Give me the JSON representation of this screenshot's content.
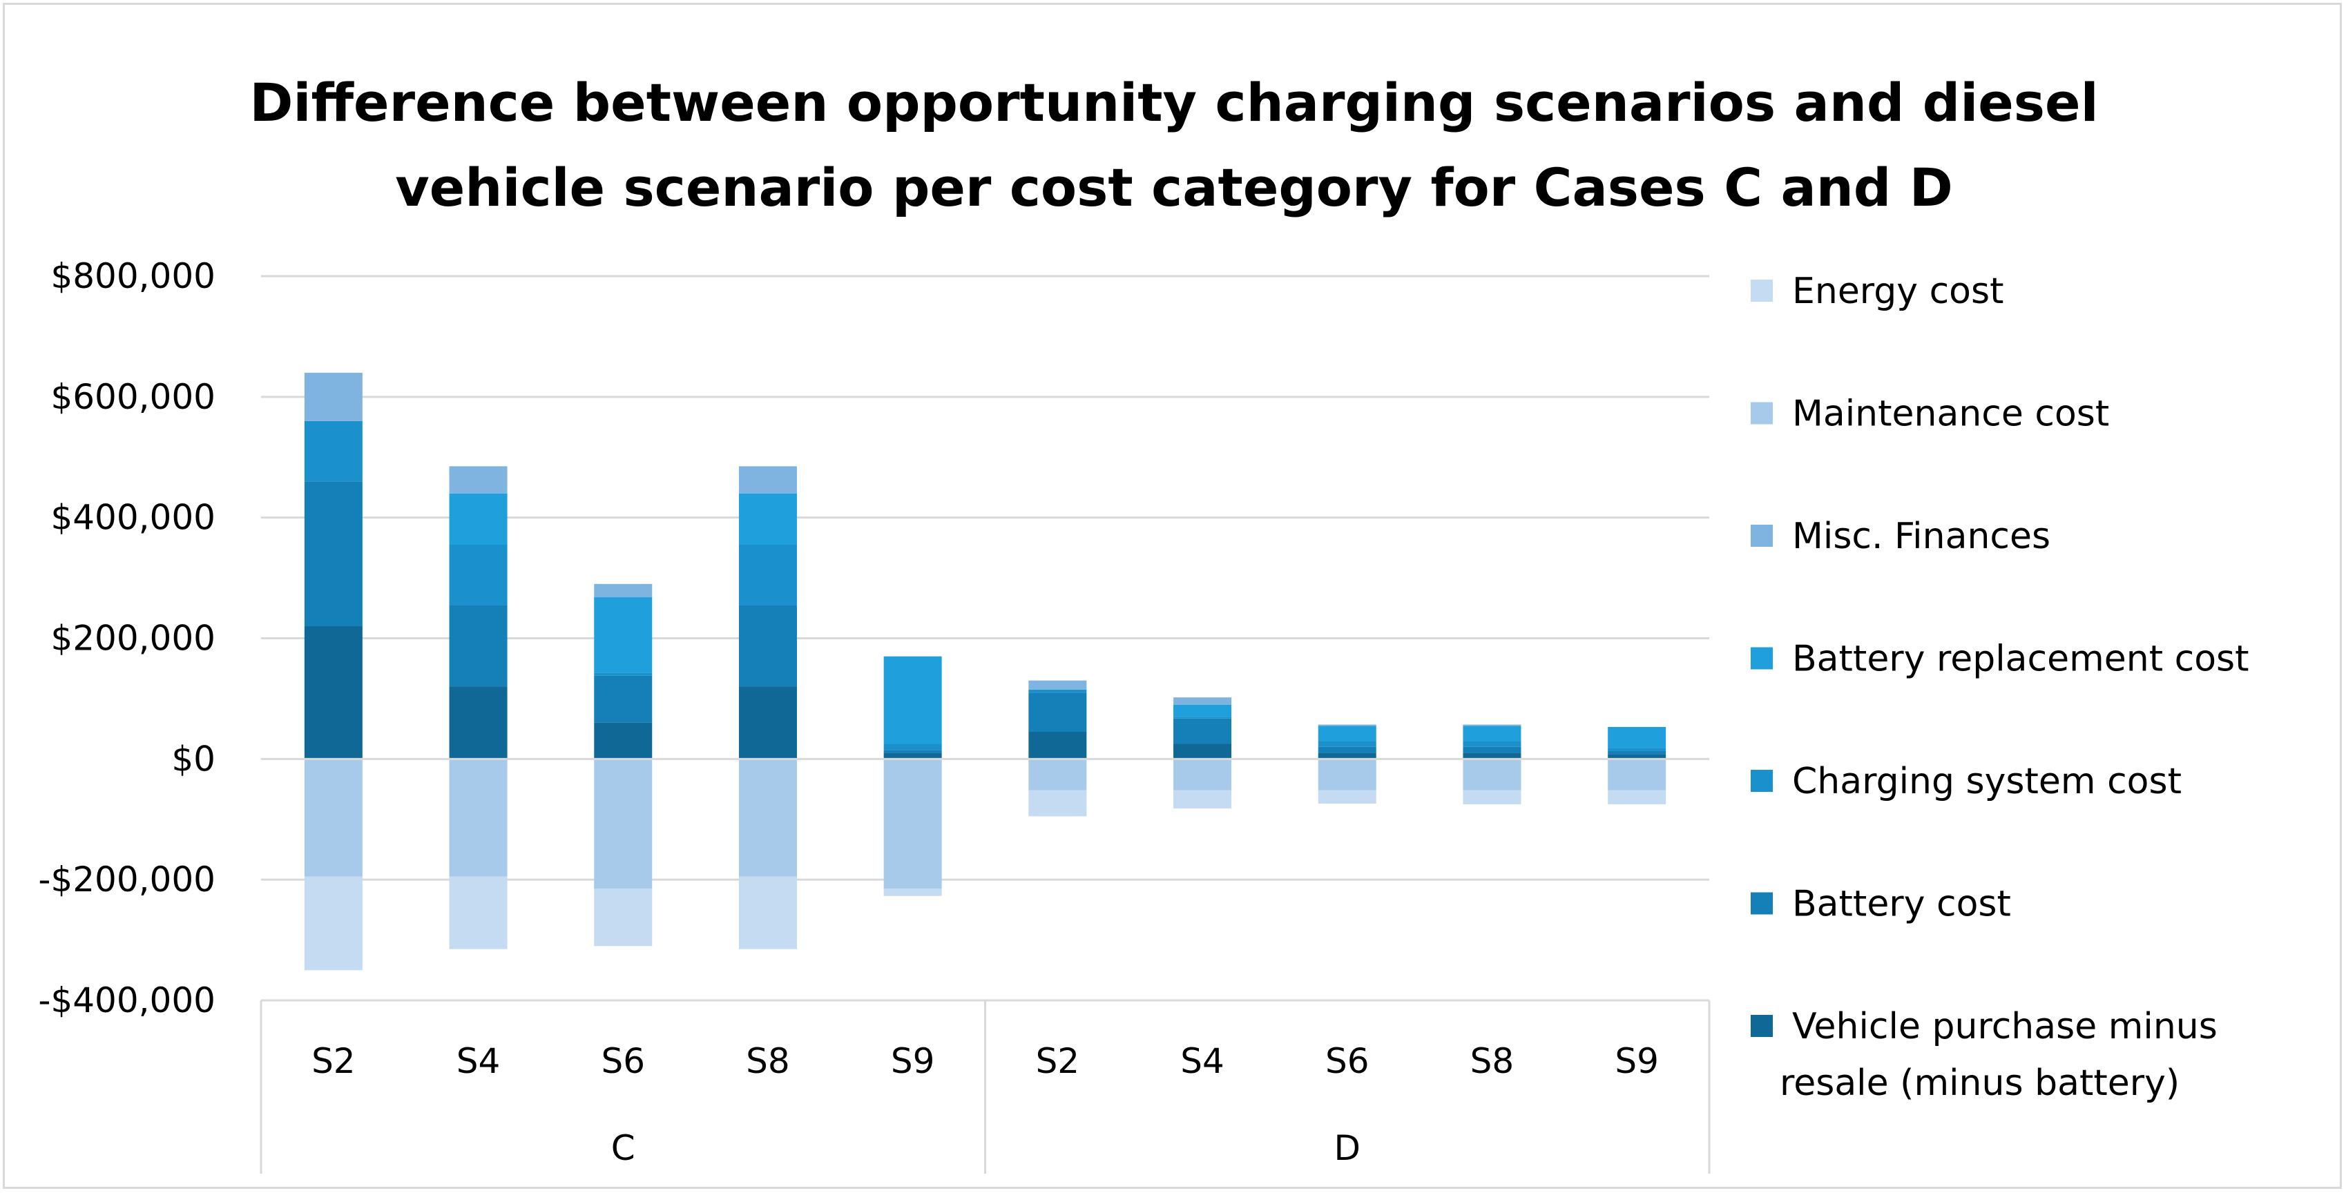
{
  "chart_data": {
    "type": "bar",
    "stacked": true,
    "title_lines": [
      "Difference between opportunity charging scenarios and diesel",
      "vehicle scenario per cost category for Cases C and D"
    ],
    "ylim": [
      -400000,
      800000
    ],
    "yticks": [
      800000,
      600000,
      400000,
      200000,
      0,
      -200000,
      -400000
    ],
    "ytick_labels": [
      "$800,000",
      "$600,000",
      "$400,000",
      "$200,000",
      "$0",
      "-$200,000",
      "-$400,000"
    ],
    "grid": true,
    "legend_position": "right",
    "groups": [
      {
        "name": "C",
        "categories": [
          "S2",
          "S4",
          "S6",
          "S8",
          "S9"
        ]
      },
      {
        "name": "D",
        "categories": [
          "S2",
          "S4",
          "S6",
          "S8",
          "S9"
        ]
      }
    ],
    "categories": [
      "S2",
      "S4",
      "S6",
      "S8",
      "S9",
      "S2",
      "S4",
      "S6",
      "S8",
      "S9"
    ],
    "series": [
      {
        "name": "Vehicle purchase minus resale (minus battery)",
        "color": "#0f6896",
        "values": [
          220000,
          120000,
          60000,
          120000,
          10000,
          45000,
          25000,
          10000,
          10000,
          8000
        ]
      },
      {
        "name": "Battery cost",
        "color": "#1580b7",
        "values": [
          240000,
          135000,
          78000,
          135000,
          5000,
          65000,
          42000,
          10000,
          10000,
          5000
        ]
      },
      {
        "name": "Charging system cost",
        "color": "#1a91cc",
        "values": [
          100000,
          100000,
          5000,
          100000,
          10000,
          5000,
          3000,
          10000,
          10000,
          5000
        ]
      },
      {
        "name": "Battery replacement cost",
        "color": "#1fa0dc",
        "values": [
          0,
          85000,
          125000,
          85000,
          145000,
          0,
          20000,
          25000,
          25000,
          35000
        ]
      },
      {
        "name": "Misc. Finances",
        "color": "#7fb4e1",
        "values": [
          80000,
          45000,
          22000,
          45000,
          0,
          15000,
          12000,
          2000,
          2000,
          0
        ]
      },
      {
        "name": "Maintenance cost",
        "color": "#a7c9ea",
        "values": [
          -195000,
          -195000,
          -215000,
          -195000,
          -215000,
          -52000,
          -52000,
          -52000,
          -52000,
          -52000
        ]
      },
      {
        "name": "Energy cost",
        "color": "#c5dbf1",
        "values": [
          -155000,
          -120000,
          -95000,
          -120000,
          -12000,
          -43000,
          -30000,
          -22000,
          -23000,
          -23000
        ]
      }
    ],
    "legend_order": [
      "Energy cost",
      "Maintenance cost",
      "Misc. Finances",
      "Battery replacement cost",
      "Charging system cost",
      "Battery cost",
      "Vehicle purchase minus resale (minus battery)"
    ],
    "legend_labels": [
      [
        "Energy cost"
      ],
      [
        "Maintenance cost"
      ],
      [
        "Misc. Finances"
      ],
      [
        "Battery replacement cost"
      ],
      [
        "Charging system cost"
      ],
      [
        "Battery cost"
      ],
      [
        "Vehicle purchase minus",
        "resale (minus battery)"
      ]
    ]
  }
}
